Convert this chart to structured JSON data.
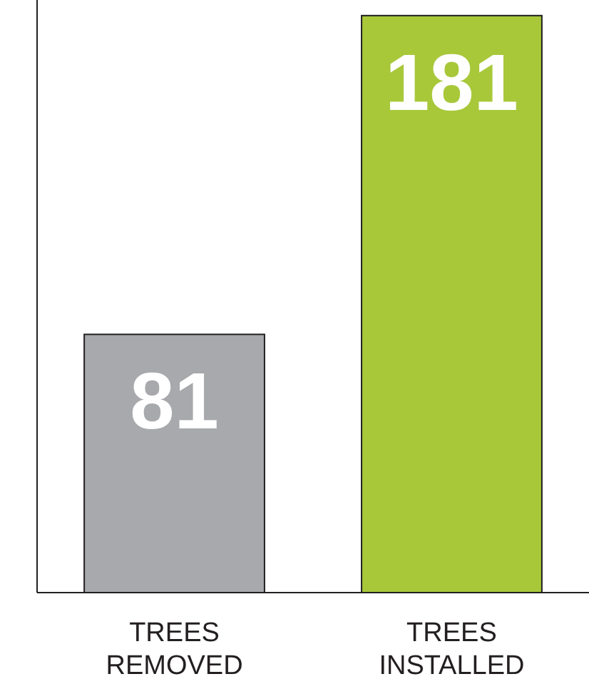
{
  "chart_data": {
    "type": "bar",
    "categories": [
      "TREES REMOVED",
      "TREES INSTALLED"
    ],
    "values": [
      81,
      181
    ],
    "colors": [
      "#a7a9ac",
      "#a8c83a"
    ],
    "data_labels": true
  }
}
